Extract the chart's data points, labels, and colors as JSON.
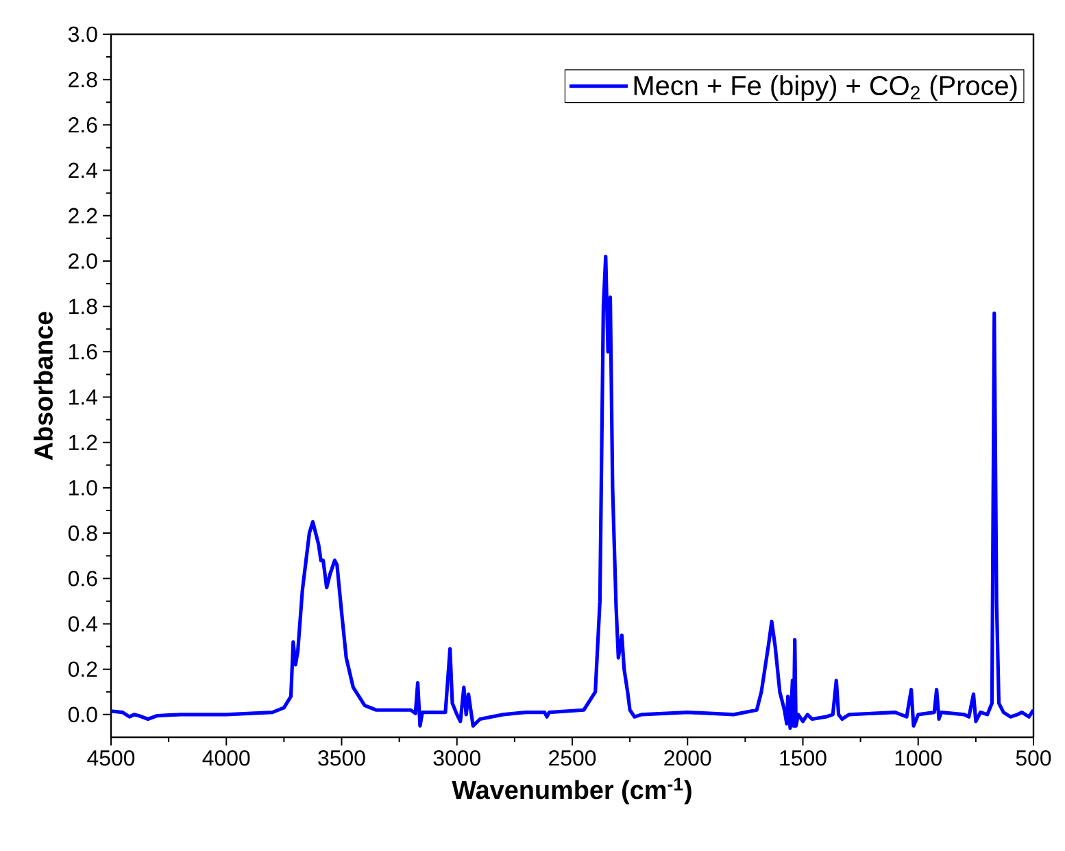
{
  "chart_data": {
    "type": "line",
    "xlabel": "Wavenumber (cm$^{-1}$)",
    "ylabel": "Absorbance",
    "xlim": [
      4500,
      500
    ],
    "ylim": [
      -0.1,
      3.0
    ],
    "xticks": [
      4500,
      4000,
      3500,
      3000,
      2500,
      2000,
      1500,
      1000,
      500
    ],
    "yticks": [
      {
        "value": 0,
        "label": "0.0"
      },
      {
        "value": 0.2,
        "label": "0.2"
      },
      {
        "value": 0.4,
        "label": "0.4"
      },
      {
        "value": 0.6,
        "label": "0.6"
      },
      {
        "value": 0.8,
        "label": "0.8"
      },
      {
        "value": 1.0,
        "label": "1.0"
      },
      {
        "value": 1.2,
        "label": "1.2"
      },
      {
        "value": 1.4,
        "label": "1.4"
      },
      {
        "value": 1.6,
        "label": "1.6"
      },
      {
        "value": 1.8,
        "label": "1.8"
      },
      {
        "value": 2.0,
        "label": "2.0"
      },
      {
        "value": 2.2,
        "label": "2.2"
      },
      {
        "value": 2.4,
        "label": "2.4"
      },
      {
        "value": 2.6,
        "label": "2.6"
      },
      {
        "value": 2.8,
        "label": "2.8"
      },
      {
        "value": 3.0,
        "label": "3.0"
      }
    ],
    "legend": "top right",
    "series": [
      {
        "name": "Mecn + Fe (bipy) + CO$_{2}$ (Proce)",
        "color": "#0000ff",
        "x": [
          4500,
          4450,
          4420,
          4400,
          4380,
          4340,
          4300,
          4200,
          4000,
          3800,
          3750,
          3720,
          3710,
          3700,
          3690,
          3670,
          3640,
          3625,
          3600,
          3590,
          3580,
          3565,
          3550,
          3530,
          3520,
          3500,
          3480,
          3450,
          3400,
          3350,
          3300,
          3200,
          3180,
          3170,
          3160,
          3150,
          3050,
          3040,
          3030,
          3020,
          3000,
          2985,
          2970,
          2960,
          2950,
          2940,
          2930,
          2900,
          2800,
          2700,
          2620,
          2610,
          2600,
          2450,
          2400,
          2380,
          2365,
          2355,
          2345,
          2335,
          2325,
          2310,
          2300,
          2285,
          2275,
          2260,
          2250,
          2230,
          2200,
          2000,
          1800,
          1700,
          1680,
          1650,
          1635,
          1620,
          1600,
          1580,
          1570,
          1565,
          1555,
          1545,
          1540,
          1535,
          1530,
          1520,
          1500,
          1480,
          1460,
          1400,
          1370,
          1355,
          1345,
          1330,
          1300,
          1100,
          1050,
          1030,
          1020,
          1000,
          930,
          920,
          910,
          900,
          800,
          780,
          760,
          750,
          730,
          700,
          680,
          670,
          660,
          650,
          630,
          600,
          570,
          550,
          520,
          500
        ],
        "values": [
          0.015,
          0.01,
          -0.01,
          0.0,
          -0.005,
          -0.02,
          -0.005,
          0.0,
          0.0,
          0.01,
          0.03,
          0.08,
          0.32,
          0.22,
          0.28,
          0.55,
          0.8,
          0.85,
          0.75,
          0.68,
          0.68,
          0.56,
          0.62,
          0.68,
          0.66,
          0.45,
          0.25,
          0.12,
          0.04,
          0.02,
          0.02,
          0.02,
          0.005,
          0.14,
          -0.05,
          0.01,
          0.01,
          null,
          0.29,
          0.05,
          0.0,
          -0.03,
          0.12,
          0.0,
          0.09,
          null,
          -0.05,
          -0.02,
          0.0,
          0.01,
          0.01,
          -0.01,
          0.01,
          0.02,
          0.1,
          0.5,
          1.8,
          2.02,
          1.6,
          1.84,
          1.0,
          0.48,
          0.25,
          0.35,
          0.2,
          0.1,
          0.02,
          -0.01,
          0.0,
          0.01,
          0.0,
          0.02,
          0.1,
          0.3,
          0.41,
          0.3,
          0.1,
          0.02,
          -0.04,
          0.08,
          -0.06,
          0.15,
          -0.05,
          0.33,
          -0.05,
          0.0,
          -0.03,
          0.0,
          -0.02,
          -0.01,
          0.0,
          0.15,
          0.0,
          -0.02,
          0.0,
          0.01,
          -0.01,
          0.11,
          -0.05,
          0.0,
          0.01,
          0.11,
          -0.02,
          0.01,
          0.0,
          -0.01,
          0.09,
          -0.03,
          0.01,
          0.0,
          0.05,
          1.77,
          0.5,
          0.05,
          0.01,
          -0.01,
          0.0,
          0.01,
          -0.01,
          0.02
        ]
      }
    ]
  }
}
